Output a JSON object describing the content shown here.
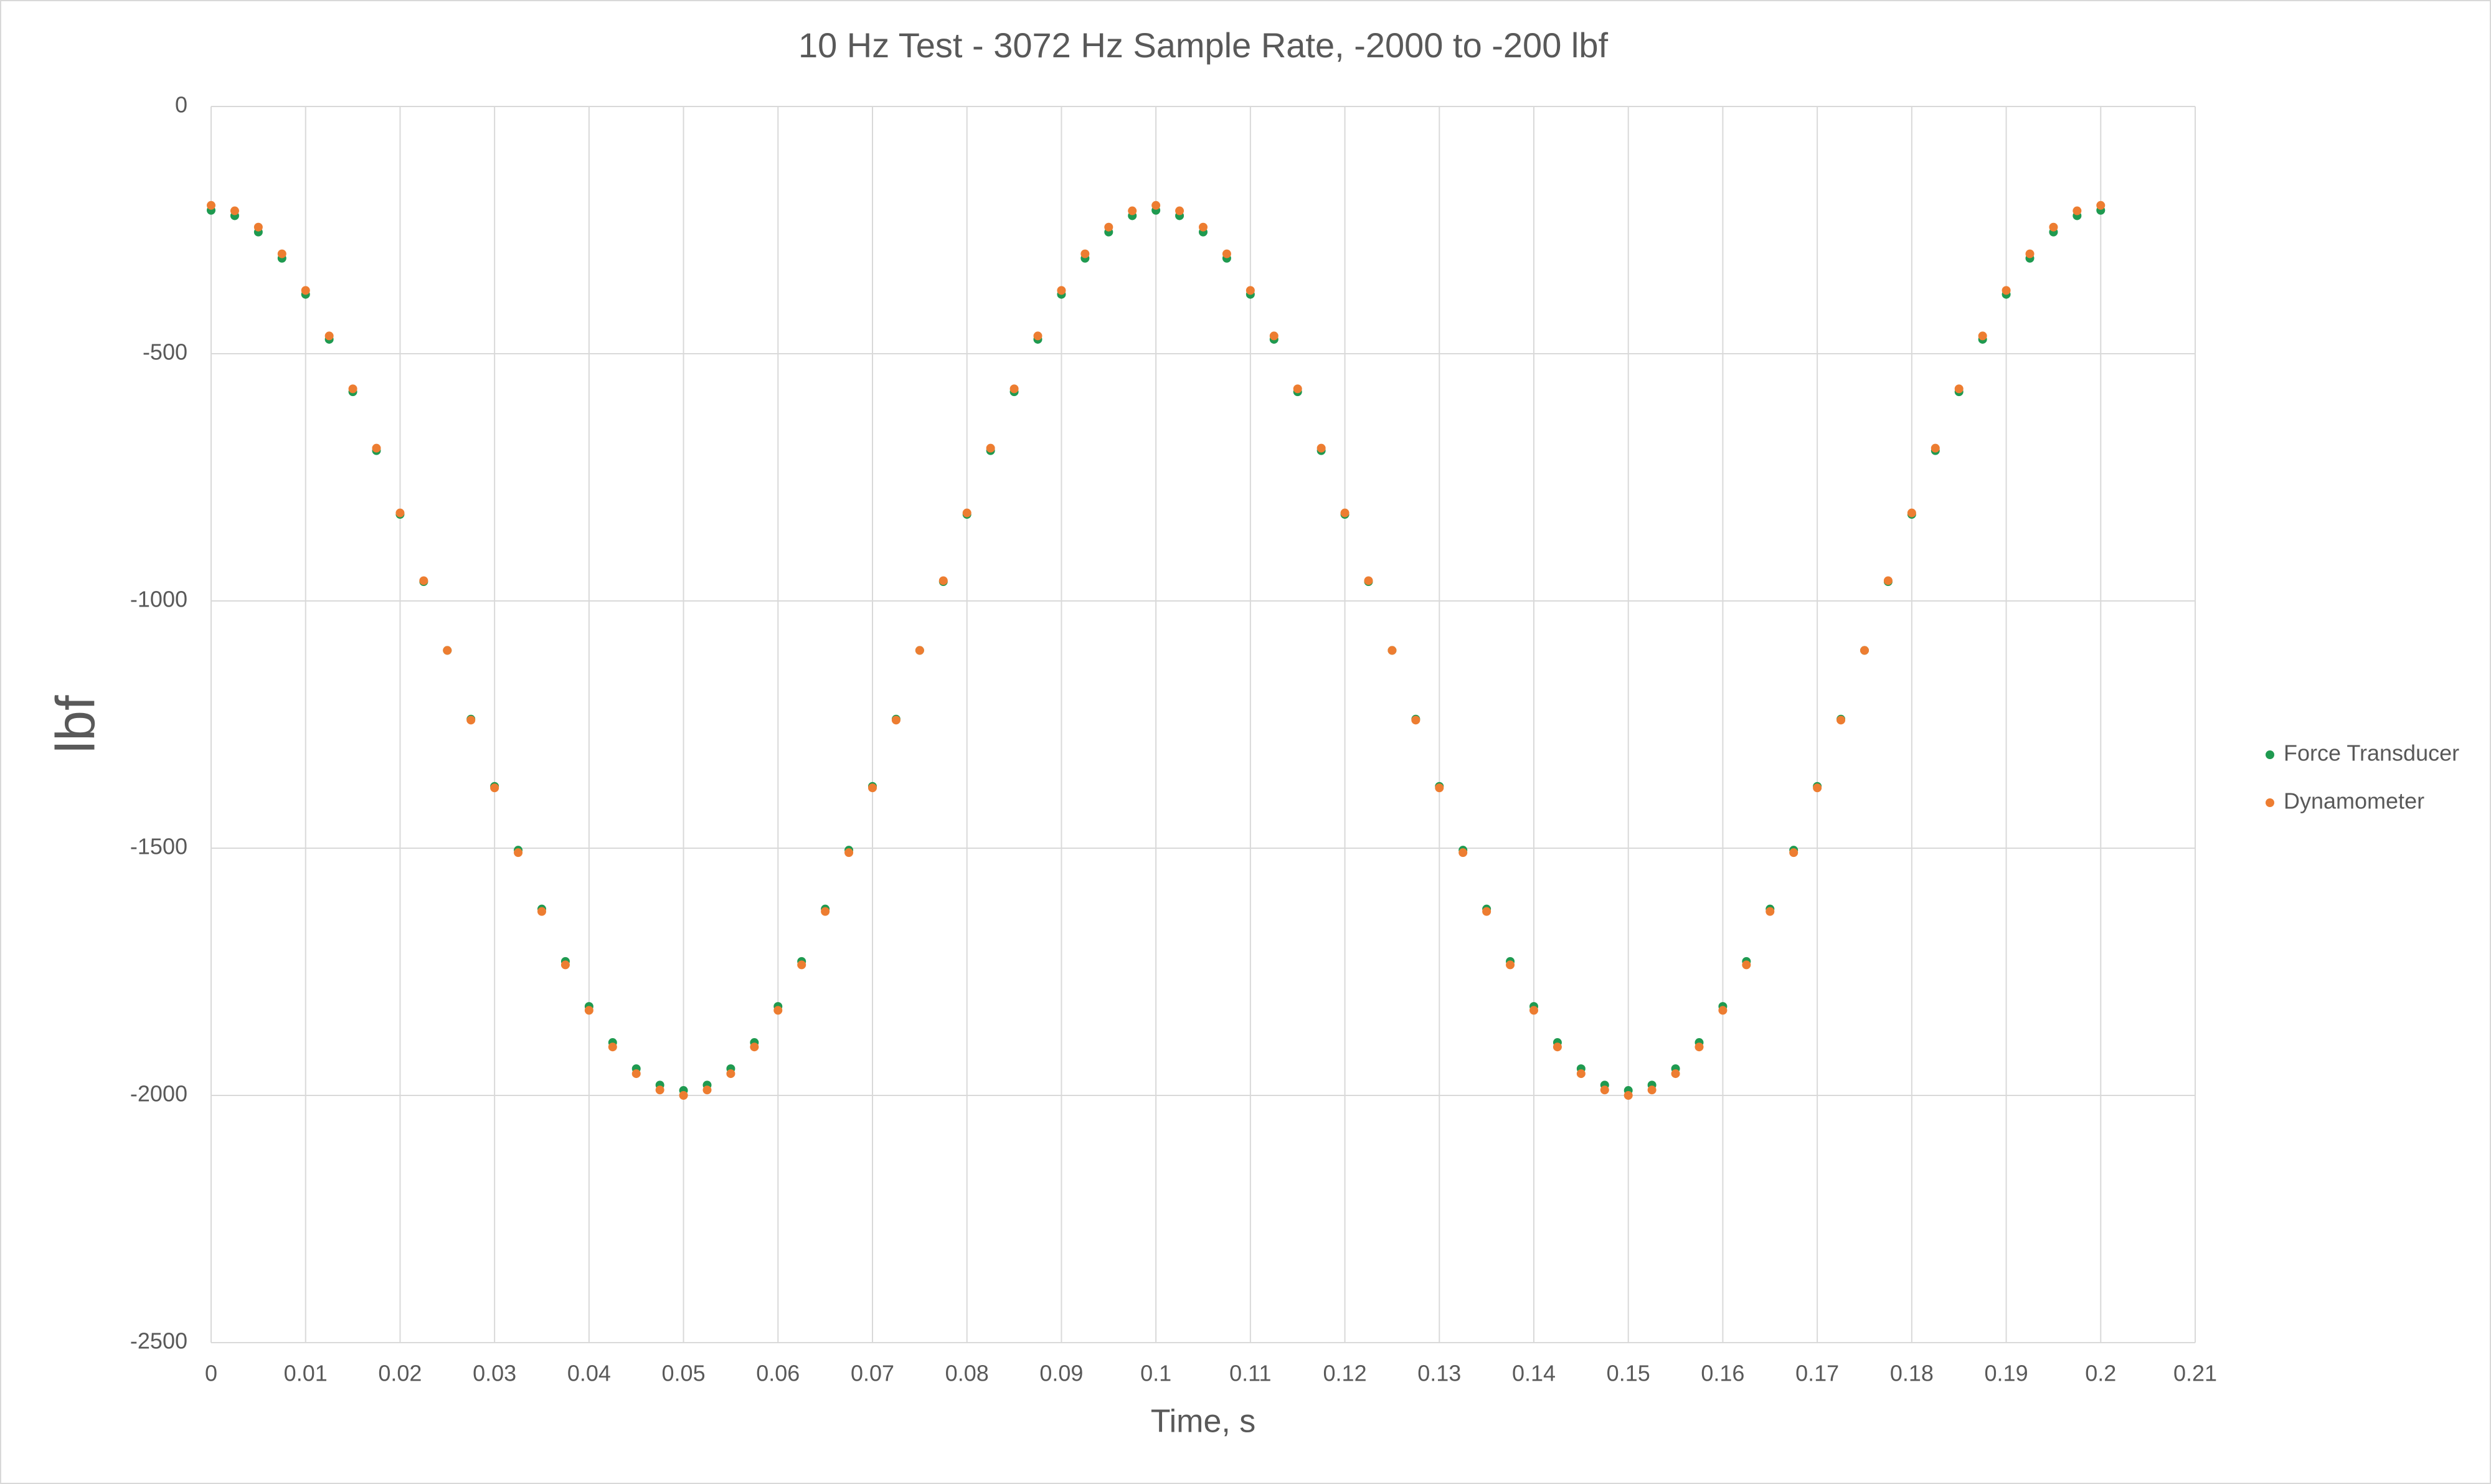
{
  "chart_data": {
    "type": "scatter",
    "title": "10 Hz Test - 3072 Hz Sample Rate, -2000 to -200 lbf",
    "x_label": "Time, s",
    "y_label": "lbf",
    "x": [
      0,
      0.0025,
      0.005,
      0.0075,
      0.01,
      0.0125,
      0.015,
      0.0175,
      0.02,
      0.0225,
      0.025,
      0.0275,
      0.03,
      0.0325,
      0.035,
      0.0375,
      0.04,
      0.0425,
      0.045,
      0.0475,
      0.05,
      0.0525,
      0.055,
      0.0575,
      0.06,
      0.0625,
      0.065,
      0.0675,
      0.07,
      0.0725,
      0.075,
      0.0775,
      0.08,
      0.0825,
      0.085,
      0.0875,
      0.09,
      0.0925,
      0.095,
      0.0975,
      0.1,
      0.1025,
      0.105,
      0.1075,
      0.11,
      0.1125,
      0.115,
      0.1175,
      0.12,
      0.1225,
      0.125,
      0.1275,
      0.13,
      0.1325,
      0.135,
      0.1375,
      0.14,
      0.1425,
      0.145,
      0.1475,
      0.15,
      0.1525,
      0.155,
      0.1575,
      0.16,
      0.1625,
      0.165,
      0.1675,
      0.17,
      0.1725,
      0.175,
      0.1775,
      0.18,
      0.1825,
      0.185,
      0.1875,
      0.19,
      0.1925,
      0.195,
      0.1975,
      0.2
    ],
    "series": [
      {
        "name": "Force Transducer",
        "color": "#1f9a50",
        "values": [
          -210,
          -221,
          -254,
          -307,
          -380,
          -471,
          -577,
          -696,
          -825,
          -961,
          -1100,
          -1239,
          -1375,
          -1504,
          -1623,
          -1729,
          -1820,
          -1893,
          -1946,
          -1979,
          -1990,
          -1979,
          -1946,
          -1893,
          -1820,
          -1729,
          -1623,
          -1504,
          -1375,
          -1239,
          -1100,
          -961,
          -825,
          -696,
          -577,
          -471,
          -380,
          -307,
          -254,
          -221,
          -210,
          -221,
          -254,
          -307,
          -380,
          -471,
          -577,
          -696,
          -825,
          -961,
          -1100,
          -1239,
          -1375,
          -1504,
          -1623,
          -1729,
          -1820,
          -1893,
          -1946,
          -1979,
          -1990,
          -1979,
          -1946,
          -1893,
          -1820,
          -1729,
          -1623,
          -1504,
          -1375,
          -1239,
          -1100,
          -961,
          -825,
          -696,
          -577,
          -471,
          -380,
          -307,
          -254,
          -221,
          -210
        ]
      },
      {
        "name": "Dynamometer",
        "color": "#ed7d31",
        "values": [
          -200,
          -211,
          -244,
          -298,
          -372,
          -464,
          -571,
          -691,
          -822,
          -959,
          -1100,
          -1241,
          -1378,
          -1509,
          -1628,
          -1736,
          -1828,
          -1902,
          -1956,
          -1989,
          -2000,
          -1989,
          -1956,
          -1902,
          -1828,
          -1736,
          -1628,
          -1509,
          -1378,
          -1241,
          -1100,
          -959,
          -822,
          -691,
          -571,
          -464,
          -372,
          -298,
          -244,
          -211,
          -200,
          -211,
          -244,
          -298,
          -372,
          -464,
          -571,
          -691,
          -822,
          -959,
          -1100,
          -1241,
          -1378,
          -1509,
          -1628,
          -1736,
          -1828,
          -1902,
          -1956,
          -1989,
          -2000,
          -1989,
          -1956,
          -1902,
          -1828,
          -1736,
          -1628,
          -1509,
          -1378,
          -1241,
          -1100,
          -959,
          -822,
          -691,
          -571,
          -464,
          -372,
          -298,
          -244,
          -211,
          -200
        ]
      }
    ],
    "xlim": [
      0,
      0.21
    ],
    "xticks": [
      0,
      0.01,
      0.02,
      0.03,
      0.04,
      0.05,
      0.06,
      0.07,
      0.08,
      0.09,
      0.1,
      0.11,
      0.12,
      0.13,
      0.14,
      0.15,
      0.16,
      0.17,
      0.18,
      0.19,
      0.2,
      0.21
    ],
    "ylim": [
      -2500,
      0
    ],
    "yticks": [
      -2500,
      -2000,
      -1500,
      -1000,
      -500,
      0
    ],
    "grid": true,
    "legend": "right"
  }
}
